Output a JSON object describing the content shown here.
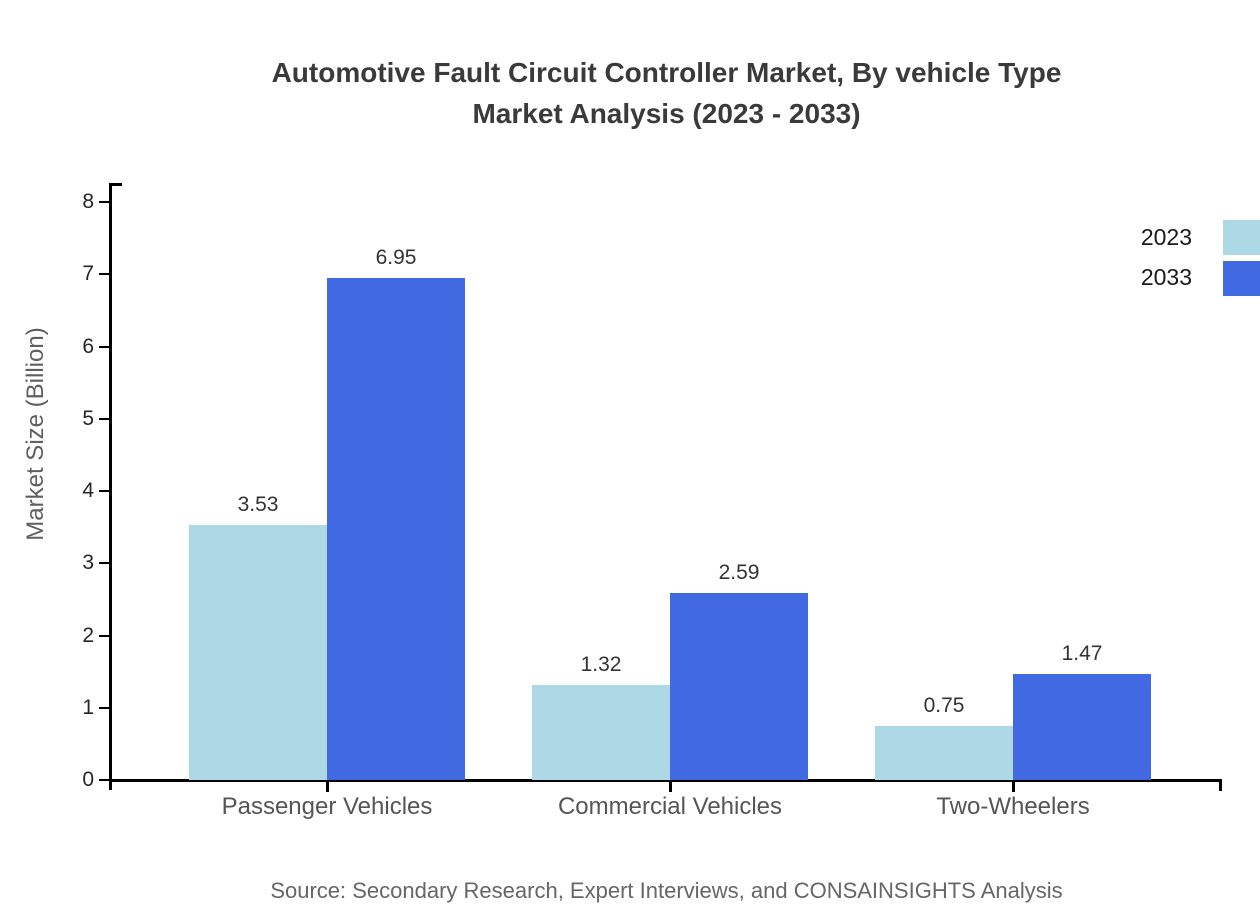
{
  "chart_data": {
    "type": "bar",
    "title": "Automotive Fault Circuit Controller Market, By vehicle Type",
    "subtitle": "Market Analysis (2023 - 2033)",
    "categories": [
      "Passenger Vehicles",
      "Commercial Vehicles",
      "Two-Wheelers"
    ],
    "series": [
      {
        "name": "2023",
        "color": "#ADD8E6",
        "values": [
          3.53,
          1.32,
          0.75
        ]
      },
      {
        "name": "2033",
        "color": "#4169E1",
        "values": [
          6.95,
          2.59,
          1.47
        ]
      }
    ],
    "value_labels": [
      "3.53",
      "6.95",
      "1.32",
      "2.59",
      "0.75",
      "1.47"
    ],
    "xlabel": "",
    "ylabel": "Market Size (Billion)",
    "ylim": [
      0,
      8
    ],
    "yticks": [
      0,
      1,
      2,
      3,
      4,
      5,
      6,
      7,
      8
    ],
    "grid": false,
    "legend_position": "top-right",
    "axis_color": "#000000",
    "source": "Source: Secondary Research, Expert Interviews, and CONSAINSIGHTS Analysis"
  }
}
